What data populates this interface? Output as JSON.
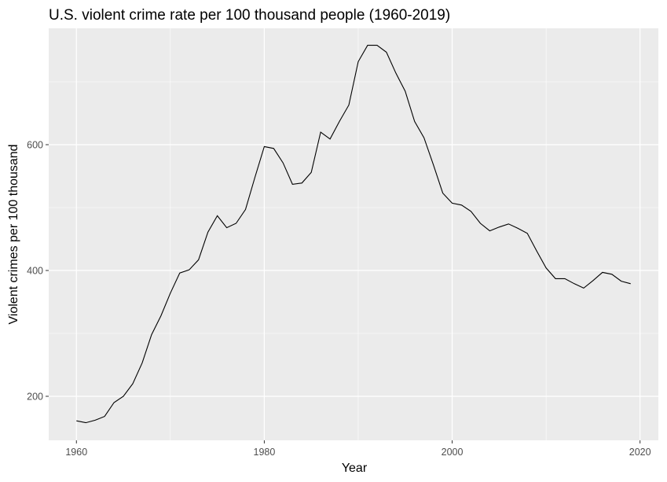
{
  "chart_data": {
    "type": "line",
    "title": "U.S. violent crime rate per 100 thousand people (1960-2019)",
    "xlabel": "Year",
    "ylabel": "Violent crimes per 100 thousand",
    "xlim": [
      1957.05,
      2021.95
    ],
    "ylim": [
      130,
      785
    ],
    "x_ticks": [
      1960,
      1980,
      2000,
      2020
    ],
    "y_ticks": [
      200,
      400,
      600
    ],
    "x_minor": [
      1970,
      1990,
      2010
    ],
    "y_minor": [
      300,
      500,
      700
    ],
    "grid": true,
    "colors": {
      "panel": "#ebebeb",
      "grid": "#ffffff",
      "line": "#000000",
      "tick": "#333333"
    },
    "series": [
      {
        "x": [
          1960,
          1961,
          1962,
          1963,
          1964,
          1965,
          1966,
          1967,
          1968,
          1969,
          1970,
          1971,
          1972,
          1973,
          1974,
          1975,
          1976,
          1977,
          1978,
          1979,
          1980,
          1981,
          1982,
          1983,
          1984,
          1985,
          1986,
          1987,
          1988,
          1989,
          1990,
          1991,
          1992,
          1993,
          1994,
          1995,
          1996,
          1997,
          1998,
          1999,
          2000,
          2001,
          2002,
          2003,
          2004,
          2005,
          2006,
          2007,
          2008,
          2009,
          2010,
          2011,
          2012,
          2013,
          2014,
          2015,
          2016,
          2017,
          2018,
          2019
        ],
        "values": [
          161,
          158,
          162,
          168,
          190,
          200,
          220,
          253,
          298,
          328,
          364,
          396,
          401,
          417,
          461,
          487,
          468,
          475,
          497,
          548,
          597,
          594,
          571,
          537,
          539,
          556,
          620,
          609,
          637,
          663,
          732,
          758,
          758,
          747,
          714,
          685,
          637,
          611,
          568,
          523,
          507,
          504,
          494,
          475,
          463,
          469,
          474,
          467,
          459,
          431,
          404,
          387,
          387,
          379,
          372,
          384,
          397,
          394,
          383,
          379
        ]
      }
    ]
  }
}
